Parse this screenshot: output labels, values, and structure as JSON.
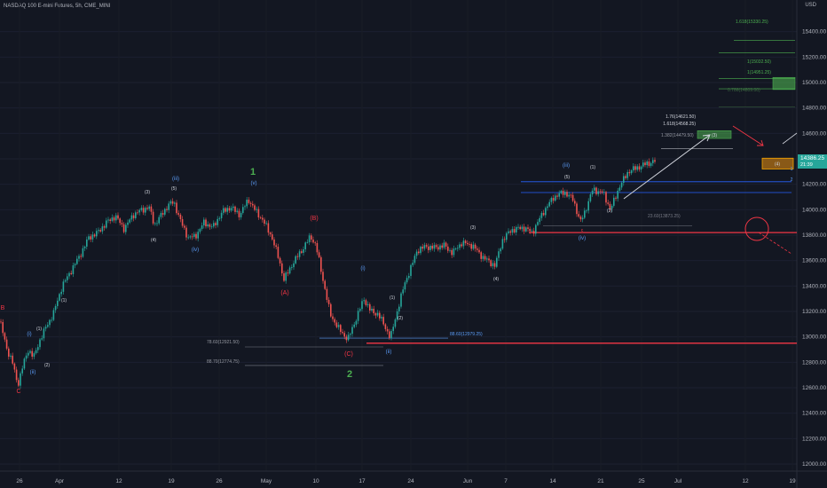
{
  "header": {
    "symbol_title": "NASDAQ 100 E-mini Futures, 5h, CME_MINI"
  },
  "currency": "USD",
  "colors": {
    "bg": "#131722",
    "up": "#26a69a",
    "down": "#ef5350",
    "blue": "#2962ff",
    "red": "#f23645",
    "green": "#4caf50",
    "white": "#d1d4dc",
    "text": "#b2b5be"
  },
  "chart_data": {
    "type": "candlestick",
    "ylim": [
      12000,
      15600
    ],
    "y_ticks": [
      "15400.00",
      "15200.00",
      "15000.00",
      "14800.00",
      "14600.00",
      "14400.00",
      "14200.00",
      "14000.00",
      "13800.00",
      "13600.00",
      "13400.00",
      "13200.00",
      "13000.00",
      "12800.00",
      "12600.00",
      "12400.00",
      "12200.00",
      "12000.00"
    ],
    "x_ticks": [
      "26",
      "Apr",
      "12",
      "19",
      "26",
      "May",
      "10",
      "17",
      "24",
      "Jun",
      "7",
      "14",
      "21",
      "25",
      "Jul",
      "12",
      "19"
    ],
    "last_price": "14386.25",
    "countdown": "21:39",
    "price_path": [
      [
        0,
        13120
      ],
      [
        8,
        12900
      ],
      [
        14,
        12800
      ],
      [
        20,
        12620
      ],
      [
        26,
        12780
      ],
      [
        32,
        12900
      ],
      [
        38,
        12840
      ],
      [
        44,
        12960
      ],
      [
        52,
        13080
      ],
      [
        60,
        13180
      ],
      [
        70,
        13400
      ],
      [
        80,
        13520
      ],
      [
        90,
        13640
      ],
      [
        100,
        13780
      ],
      [
        110,
        13820
      ],
      [
        120,
        13900
      ],
      [
        130,
        13950
      ],
      [
        140,
        13850
      ],
      [
        150,
        13960
      ],
      [
        160,
        14000
      ],
      [
        168,
        14020
      ],
      [
        174,
        13880
      ],
      [
        182,
        13960
      ],
      [
        190,
        14040
      ],
      [
        196,
        14060
      ],
      [
        204,
        13900
      ],
      [
        212,
        13780
      ],
      [
        220,
        13790
      ],
      [
        230,
        13900
      ],
      [
        240,
        13860
      ],
      [
        250,
        13980
      ],
      [
        260,
        14020
      ],
      [
        270,
        13960
      ],
      [
        280,
        14080
      ],
      [
        288,
        13990
      ],
      [
        296,
        13920
      ],
      [
        306,
        13790
      ],
      [
        314,
        13620
      ],
      [
        320,
        13450
      ],
      [
        330,
        13580
      ],
      [
        340,
        13680
      ],
      [
        350,
        13790
      ],
      [
        356,
        13720
      ],
      [
        364,
        13450
      ],
      [
        372,
        13180
      ],
      [
        382,
        13060
      ],
      [
        392,
        12980
      ],
      [
        400,
        13120
      ],
      [
        410,
        13300
      ],
      [
        418,
        13200
      ],
      [
        426,
        13180
      ],
      [
        434,
        13080
      ],
      [
        440,
        12990
      ],
      [
        446,
        13160
      ],
      [
        456,
        13420
      ],
      [
        464,
        13560
      ],
      [
        470,
        13680
      ],
      [
        480,
        13710
      ],
      [
        490,
        13700
      ],
      [
        500,
        13720
      ],
      [
        510,
        13660
      ],
      [
        520,
        13740
      ],
      [
        532,
        13720
      ],
      [
        545,
        13620
      ],
      [
        558,
        13560
      ],
      [
        566,
        13760
      ],
      [
        576,
        13840
      ],
      [
        590,
        13860
      ],
      [
        600,
        13820
      ],
      [
        612,
        13980
      ],
      [
        624,
        14100
      ],
      [
        636,
        14140
      ],
      [
        646,
        14080
      ],
      [
        654,
        13900
      ],
      [
        660,
        14000
      ],
      [
        668,
        14160
      ],
      [
        680,
        14130
      ],
      [
        688,
        14000
      ],
      [
        698,
        14180
      ],
      [
        708,
        14300
      ],
      [
        718,
        14330
      ],
      [
        728,
        14360
      ],
      [
        740,
        14386
      ]
    ]
  },
  "labels": {
    "wave1": "1",
    "wave2": "2",
    "A": "(A)",
    "B": "(B)",
    "C": "(C)",
    "iii": "(iii)",
    "iv": "(iv)",
    "v": "(v)",
    "i": "(i)",
    "ii": "(ii)",
    "i_left": "(i)",
    "ii_left": "(ii)",
    "w1": "(1)",
    "w2": "(2)",
    "w3": "(3)",
    "w4": "(4)",
    "w5": "(5)",
    "B_left": "B",
    "C_left": "C",
    "r1": "(1)",
    "r2": "(2)",
    "r3": "(3)",
    "r4": "(4)",
    "r5": "(5)",
    "riii": "(iii)",
    "riv": "(iv)",
    "rc": "c",
    "box3": "(3)",
    "box4": "(4)",
    "blue1": "1",
    "blue2": "2"
  },
  "fib_labels": {
    "f1618_top": "1.618(15330.25)",
    "f1_top": "1(15032.50)",
    "f1_2": "1(14951.25)",
    "f0786": "0.786(14809.00)",
    "f176": "1.76(14621.50)",
    "f1618": "1.618(14568.25)",
    "f1382": "1.382(14479.50)",
    "f236": "23.60(13873.25)",
    "f786": "78.60(12921.50)",
    "f886b": "88.60(12979.25)",
    "f887": "88.70(12774.75)"
  }
}
